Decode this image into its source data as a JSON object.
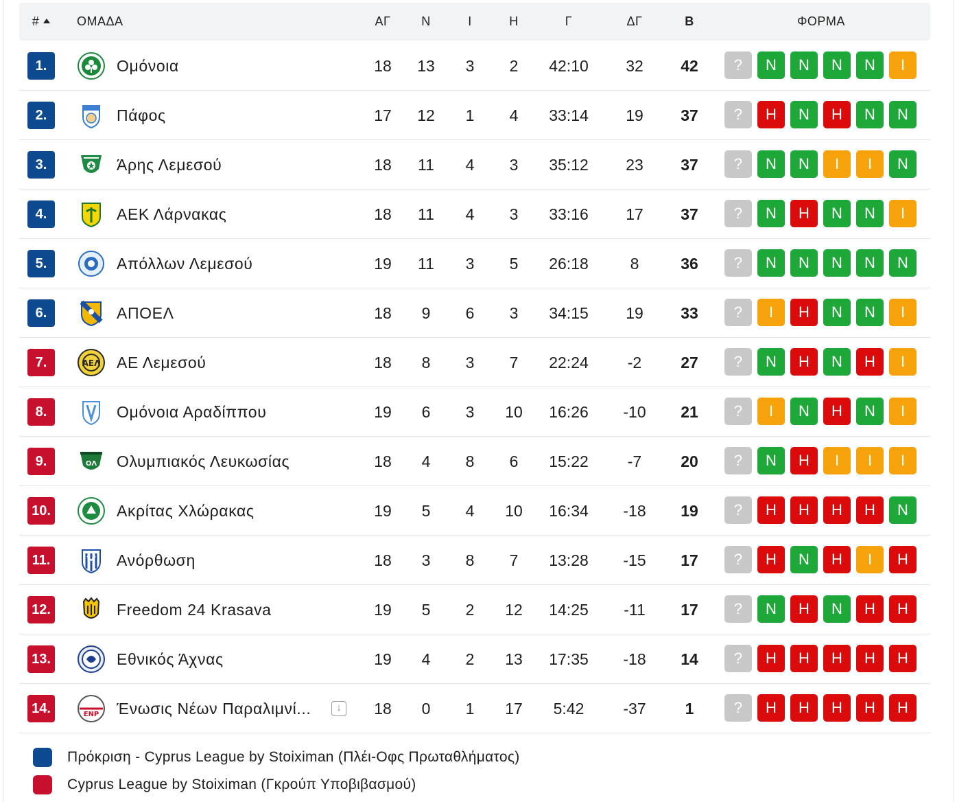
{
  "header": {
    "rank": "#",
    "team": "ΟΜΑΔΑ",
    "played": "ΑΓ",
    "wins": "Ν",
    "draws": "Ι",
    "losses": "Η",
    "goals": "Γ",
    "goal_diff": "ΔΓ",
    "points": "Β",
    "form": "ΦΟΡΜΑ"
  },
  "colors": {
    "promotion": "#0d4a8f",
    "relegation": "#c8102e",
    "win": "#1ea83a",
    "draw": "#f6a20b",
    "loss": "#dc0b0b",
    "next": "#c8c8c8"
  },
  "rows": [
    {
      "rank": "1.",
      "zone": "promotion",
      "team": "Ομόνοια",
      "played": "18",
      "wins": "13",
      "draws": "3",
      "losses": "2",
      "goals": "42:10",
      "gd": "32",
      "pts": "42",
      "form": [
        "?",
        "Ν",
        "Ν",
        "Ν",
        "Ν",
        "Ι"
      ]
    },
    {
      "rank": "2.",
      "zone": "promotion",
      "team": "Πάφος",
      "played": "17",
      "wins": "12",
      "draws": "1",
      "losses": "4",
      "goals": "33:14",
      "gd": "19",
      "pts": "37",
      "form": [
        "?",
        "Η",
        "Ν",
        "Η",
        "Ν",
        "Ν"
      ]
    },
    {
      "rank": "3.",
      "zone": "promotion",
      "team": "Άρης Λεμεσού",
      "played": "18",
      "wins": "11",
      "draws": "4",
      "losses": "3",
      "goals": "35:12",
      "gd": "23",
      "pts": "37",
      "form": [
        "?",
        "Ν",
        "Ν",
        "Ι",
        "Ι",
        "Ν"
      ]
    },
    {
      "rank": "4.",
      "zone": "promotion",
      "team": "ΑΕΚ Λάρνακας",
      "played": "18",
      "wins": "11",
      "draws": "4",
      "losses": "3",
      "goals": "33:16",
      "gd": "17",
      "pts": "37",
      "form": [
        "?",
        "Ν",
        "Η",
        "Ν",
        "Ν",
        "Ι"
      ]
    },
    {
      "rank": "5.",
      "zone": "promotion",
      "team": "Απόλλων Λεμεσού",
      "played": "19",
      "wins": "11",
      "draws": "3",
      "losses": "5",
      "goals": "26:18",
      "gd": "8",
      "pts": "36",
      "form": [
        "?",
        "Ν",
        "Ν",
        "Ν",
        "Ν",
        "Ν"
      ]
    },
    {
      "rank": "6.",
      "zone": "promotion",
      "team": "ΑΠΟΕΛ",
      "played": "18",
      "wins": "9",
      "draws": "6",
      "losses": "3",
      "goals": "34:15",
      "gd": "19",
      "pts": "33",
      "form": [
        "?",
        "Ι",
        "Η",
        "Ν",
        "Ν",
        "Ι"
      ]
    },
    {
      "rank": "7.",
      "zone": "relegation",
      "team": "ΑΕ Λεμεσού",
      "played": "18",
      "wins": "8",
      "draws": "3",
      "losses": "7",
      "goals": "22:24",
      "gd": "-2",
      "pts": "27",
      "form": [
        "?",
        "Ν",
        "Η",
        "Ν",
        "Η",
        "Ι"
      ]
    },
    {
      "rank": "8.",
      "zone": "relegation",
      "team": "Ομόνοια Αραδίππου",
      "played": "19",
      "wins": "6",
      "draws": "3",
      "losses": "10",
      "goals": "16:26",
      "gd": "-10",
      "pts": "21",
      "form": [
        "?",
        "Ι",
        "Ν",
        "Η",
        "Ν",
        "Ι"
      ]
    },
    {
      "rank": "9.",
      "zone": "relegation",
      "team": "Ολυμπιακός Λευκωσίας",
      "played": "18",
      "wins": "4",
      "draws": "8",
      "losses": "6",
      "goals": "15:22",
      "gd": "-7",
      "pts": "20",
      "form": [
        "?",
        "Ν",
        "Η",
        "Ι",
        "Ι",
        "Ι"
      ]
    },
    {
      "rank": "10.",
      "zone": "relegation",
      "team": "Ακρίτας Χλώρακας",
      "played": "19",
      "wins": "5",
      "draws": "4",
      "losses": "10",
      "goals": "16:34",
      "gd": "-18",
      "pts": "19",
      "form": [
        "?",
        "Η",
        "Η",
        "Η",
        "Η",
        "Ν"
      ]
    },
    {
      "rank": "11.",
      "zone": "relegation",
      "team": "Ανόρθωση",
      "played": "18",
      "wins": "3",
      "draws": "8",
      "losses": "7",
      "goals": "13:28",
      "gd": "-15",
      "pts": "17",
      "form": [
        "?",
        "Η",
        "Ν",
        "Η",
        "Ι",
        "Η"
      ]
    },
    {
      "rank": "12.",
      "zone": "relegation",
      "team": "Freedom 24 Krasava",
      "played": "19",
      "wins": "5",
      "draws": "2",
      "losses": "12",
      "goals": "14:25",
      "gd": "-11",
      "pts": "17",
      "form": [
        "?",
        "Ν",
        "Η",
        "Ν",
        "Η",
        "Η"
      ]
    },
    {
      "rank": "13.",
      "zone": "relegation",
      "team": "Εθνικός Άχνας",
      "played": "19",
      "wins": "4",
      "draws": "2",
      "losses": "13",
      "goals": "17:35",
      "gd": "-18",
      "pts": "14",
      "form": [
        "?",
        "Η",
        "Η",
        "Η",
        "Η",
        "Η"
      ]
    },
    {
      "rank": "14.",
      "zone": "relegation",
      "team": "Ένωσις Νέων Παραλιμνί...",
      "played": "18",
      "wins": "0",
      "draws": "1",
      "losses": "17",
      "goals": "5:42",
      "gd": "-37",
      "pts": "1",
      "form": [
        "?",
        "Η",
        "Η",
        "Η",
        "Η",
        "Η"
      ]
    }
  ],
  "team_logos": [
    "omonoia-logo",
    "pafos-logo",
    "aris-limassol-logo",
    "aek-larnaca-logo",
    "apollon-limassol-logo",
    "apoel-logo",
    "ael-limassol-logo",
    "omonoia-aradippou-logo",
    "olympiakos-nicosia-logo",
    "akritas-chlorakas-logo",
    "anorthosis-logo",
    "krasava-logo",
    "ethnikos-achna-logo",
    "enp-paralimni-logo"
  ],
  "legend": [
    {
      "zone": "promotion",
      "label": "Πρόκριση - Cyprus League by Stoiximan (Πλέι-Οφς Πρωταθλήματος)"
    },
    {
      "zone": "relegation",
      "label": "Cyprus League by Stoiximan (Γκρούπ Υποβιβασμού)"
    }
  ]
}
